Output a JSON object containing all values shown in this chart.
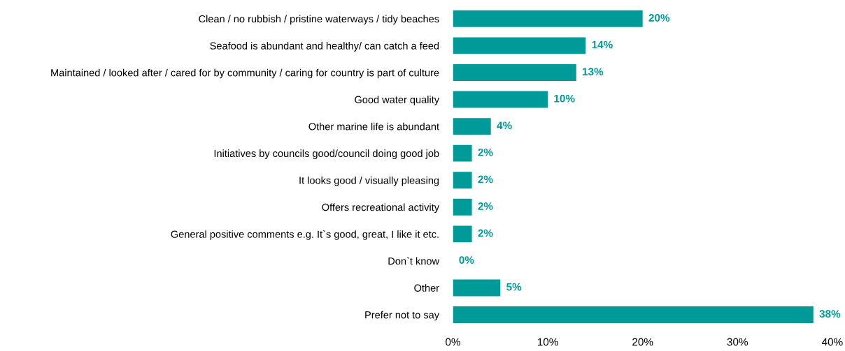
{
  "chart_data": {
    "type": "bar",
    "orientation": "horizontal",
    "categories": [
      "Clean / no rubbish / pristine waterways / tidy beaches",
      "Seafood is abundant and healthy/ can catch a feed",
      "Maintained / looked after / cared for by community / caring for country is part of culture",
      "Good water quality",
      "Other marine life is abundant",
      "Initiatives by councils good/council doing good job",
      "It looks good / visually pleasing",
      "Offers recreational activity",
      "General positive comments e.g. It`s good, great, I like it etc.",
      "Don`t know",
      "Other",
      "Prefer not to say"
    ],
    "values": [
      20,
      14,
      13,
      10,
      4,
      2,
      2,
      2,
      2,
      0,
      5,
      38
    ],
    "value_labels": [
      "20%",
      "14%",
      "13%",
      "10%",
      "4%",
      "2%",
      "2%",
      "2%",
      "2%",
      "0%",
      "5%",
      "38%"
    ],
    "color": "#009a98",
    "xlim": [
      0,
      40
    ],
    "xticks": [
      {
        "value": 0,
        "label": "0%"
      },
      {
        "value": 10,
        "label": "10%"
      },
      {
        "value": 20,
        "label": "20%"
      },
      {
        "value": 30,
        "label": "30%"
      },
      {
        "value": 40,
        "label": "40%"
      }
    ],
    "grid": false,
    "legend": false
  }
}
